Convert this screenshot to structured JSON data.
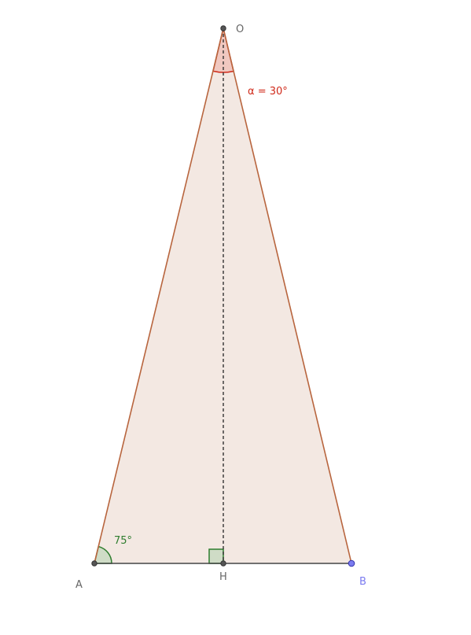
{
  "points": [
    {
      "label": "O"
    },
    {
      "label": "A"
    },
    {
      "label": "H"
    },
    {
      "label": "B"
    }
  ],
  "angles": [
    {
      "label": "α = 30°"
    },
    {
      "label": "75°"
    }
  ]
}
